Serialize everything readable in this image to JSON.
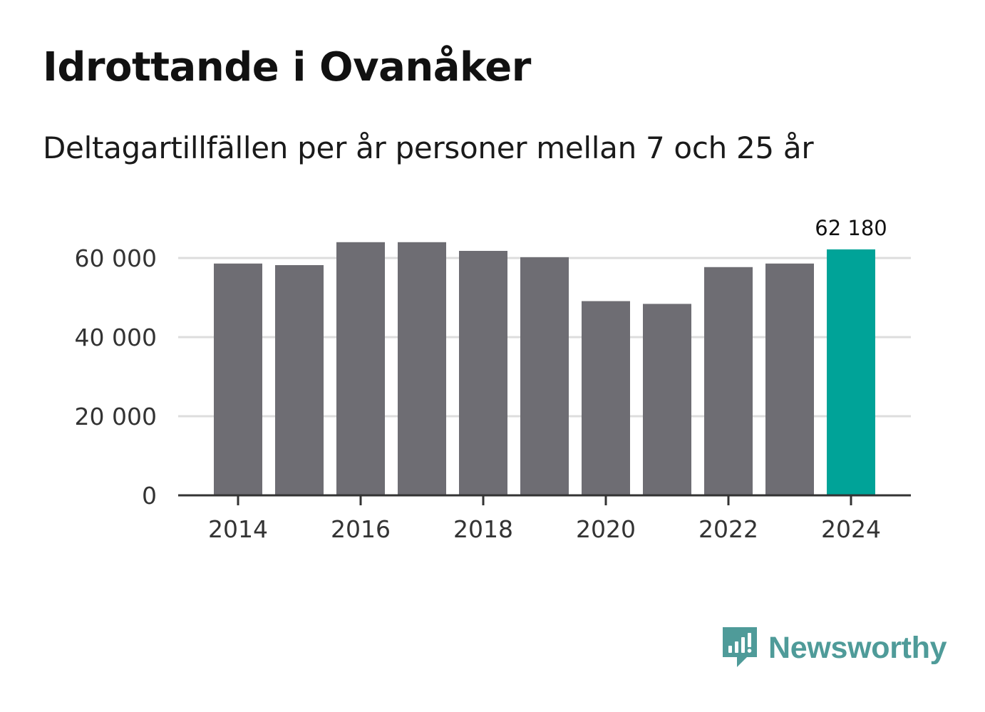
{
  "title": "Idrottande i Ovanåker",
  "subtitle": "Deltagartillfällen per år personer mellan 7 och 25 år",
  "brand": {
    "name": "Newsworthy",
    "icon": "newsworthy-logo-icon",
    "color": "#4f9b99"
  },
  "colors": {
    "bar": "#6e6d73",
    "highlight": "#00a398",
    "grid": "#dddddd",
    "axis": "#333333"
  },
  "chart_data": {
    "type": "bar",
    "title": "Idrottande i Ovanåker",
    "subtitle": "Deltagartillfällen per år personer mellan 7 och 25 år",
    "xlabel": "",
    "ylabel": "",
    "categories": [
      "2014",
      "2015",
      "2016",
      "2017",
      "2018",
      "2019",
      "2020",
      "2021",
      "2022",
      "2023",
      "2024"
    ],
    "values": [
      58600,
      58200,
      64000,
      64000,
      61800,
      60200,
      49100,
      48400,
      57700,
      58600,
      62180
    ],
    "highlight_index": 10,
    "ylim": [
      0,
      70000
    ],
    "yticks": [
      0,
      20000,
      40000,
      60000
    ],
    "ytick_labels": [
      "0",
      "20 000",
      "40 000",
      "60 000"
    ],
    "xticks": [
      "2014",
      "2016",
      "2018",
      "2020",
      "2022",
      "2024"
    ],
    "data_labels": [
      {
        "category": "2024",
        "text": "62 180"
      }
    ],
    "grid": true,
    "legend": "none"
  }
}
